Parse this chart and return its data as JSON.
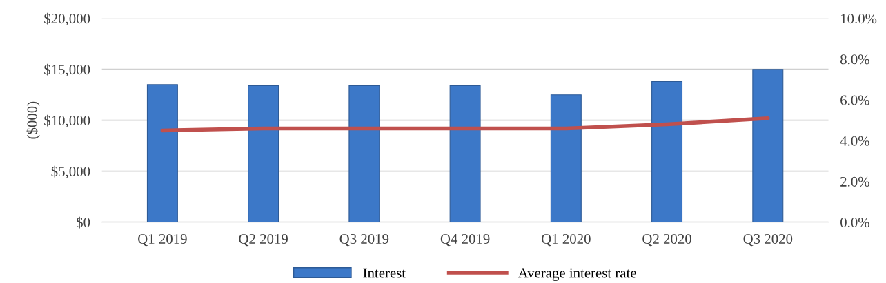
{
  "chart_data": {
    "type": "bar",
    "ylabel": "($000)",
    "categories": [
      "Q1 2019",
      "Q2 2019",
      "Q3 2019",
      "Q4 2019",
      "Q1 2020",
      "Q2 2020",
      "Q3 2020"
    ],
    "series": [
      {
        "name": "Interest",
        "color": "#3c78c8",
        "values": [
          13500,
          13400,
          13400,
          13400,
          12500,
          13800,
          15000
        ]
      },
      {
        "name": "Average interest rate",
        "type": "line",
        "axis": "y2",
        "color": "#c0504d",
        "values": [
          4.5,
          4.6,
          4.6,
          4.6,
          4.6,
          4.8,
          5.1
        ]
      }
    ],
    "ylim": [
      0,
      20000
    ],
    "yticks": [
      {
        "value": 0,
        "label": "$0"
      },
      {
        "value": 5000,
        "label": "$5,000"
      },
      {
        "value": 10000,
        "label": "$10,000"
      },
      {
        "value": 15000,
        "label": "$15,000"
      },
      {
        "value": 20000,
        "label": "$20,000"
      }
    ],
    "y2lim": [
      0,
      10
    ],
    "y2ticks": [
      {
        "value": 0,
        "label": "0.0%"
      },
      {
        "value": 2,
        "label": "2.0%"
      },
      {
        "value": 4,
        "label": "4.0%"
      },
      {
        "value": 6,
        "label": "6.0%"
      },
      {
        "value": 8,
        "label": "8.0%"
      },
      {
        "value": 10,
        "label": "10.0%"
      }
    ],
    "grid": "y",
    "legend": "bottom",
    "marker": "none"
  }
}
